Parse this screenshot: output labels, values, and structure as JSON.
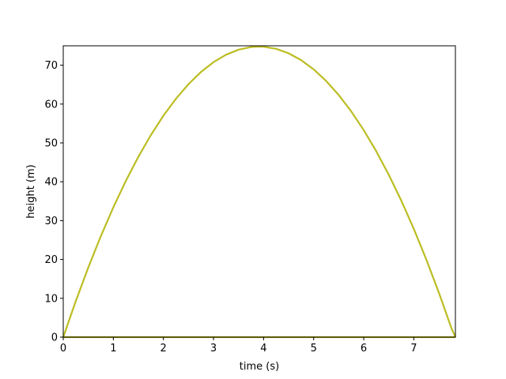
{
  "chart_data": {
    "type": "line",
    "title": "",
    "xlabel": "time (s)",
    "ylabel": "height (m)",
    "xlim": [
      0,
      7.83
    ],
    "ylim": [
      0,
      75
    ],
    "xticks": [
      0,
      1,
      2,
      3,
      4,
      5,
      6,
      7
    ],
    "yticks": [
      0,
      10,
      20,
      30,
      40,
      50,
      60,
      70
    ],
    "grid": false,
    "series": [
      {
        "color": "#bcbd22",
        "x": [
          0,
          0.25,
          0.5,
          0.75,
          1.0,
          1.25,
          1.5,
          1.75,
          2.0,
          2.25,
          2.5,
          2.75,
          3.0,
          3.25,
          3.5,
          3.75,
          3.915,
          4.0,
          4.25,
          4.5,
          4.75,
          5.0,
          5.25,
          5.5,
          5.75,
          6.0,
          6.25,
          6.5,
          6.75,
          7.0,
          7.25,
          7.5,
          7.75,
          7.83
        ],
        "y": [
          0,
          9.28,
          17.94,
          25.98,
          33.41,
          40.23,
          46.44,
          52.03,
          57.01,
          61.37,
          65.12,
          68.26,
          70.79,
          72.7,
          74.0,
          74.69,
          74.8,
          74.76,
          74.22,
          73.07,
          71.31,
          68.93,
          65.94,
          62.34,
          58.12,
          53.29,
          47.85,
          41.8,
          35.13,
          27.85,
          19.96,
          11.45,
          2.34,
          0
        ],
        "baseline_color": "#bcbd22"
      }
    ]
  }
}
